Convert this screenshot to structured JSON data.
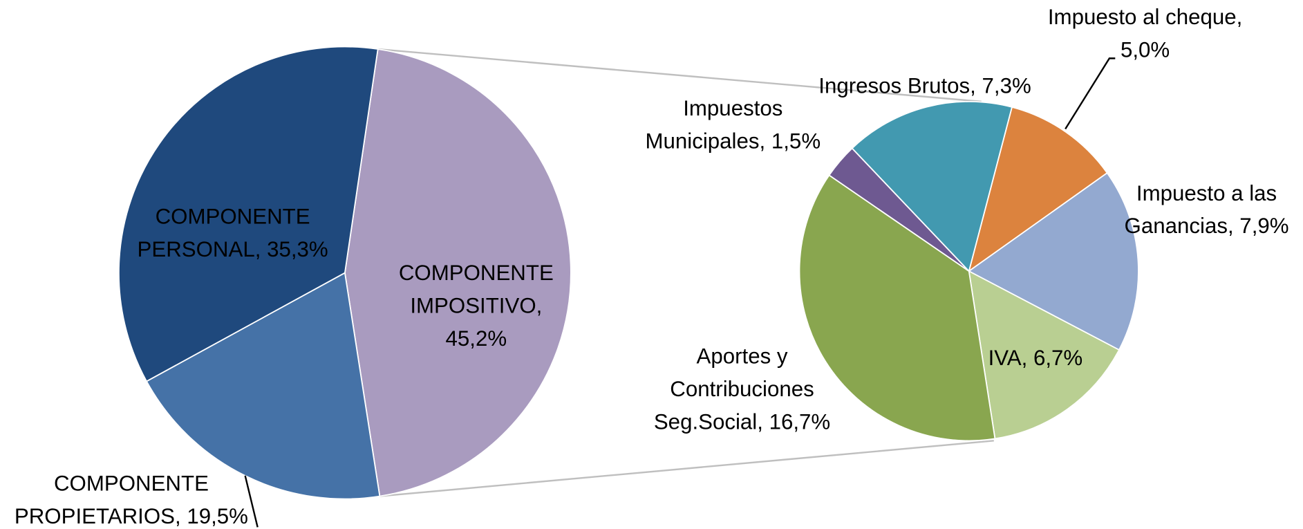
{
  "chart_data": [
    {
      "type": "pie",
      "labels": [
        [
          "COMPONENTE",
          "IMPOSITIVO,",
          "45,2%"
        ],
        [
          "COMPONENTE",
          "PROPIETARIOS, 19,5%"
        ],
        [
          "COMPONENTE",
          "PERSONAL, 35,3%"
        ]
      ],
      "values": [
        45.2,
        19.5,
        35.3
      ],
      "colors": [
        "#a99bbf",
        "#4572a7",
        "#1f497d"
      ]
    },
    {
      "type": "pie",
      "labels": [
        [
          "Impuesto al cheque,",
          "5,0%"
        ],
        [
          "Impuesto a las",
          "Ganancias, 7,9%"
        ],
        [
          "IVA, 6,7%"
        ],
        [
          "Aportes y",
          "Contribuciones",
          "Seg.Social, 16,7%"
        ],
        [
          "Impuestos",
          "Municipales, 1,5%"
        ],
        [
          "Ingresos Brutos, 7,3%"
        ]
      ],
      "values": [
        5.0,
        7.9,
        6.7,
        16.7,
        1.5,
        7.3
      ],
      "colors": [
        "#dc833e",
        "#93a9d0",
        "#b9cf92",
        "#89a64f",
        "#6e5991",
        "#4299b0"
      ]
    }
  ]
}
